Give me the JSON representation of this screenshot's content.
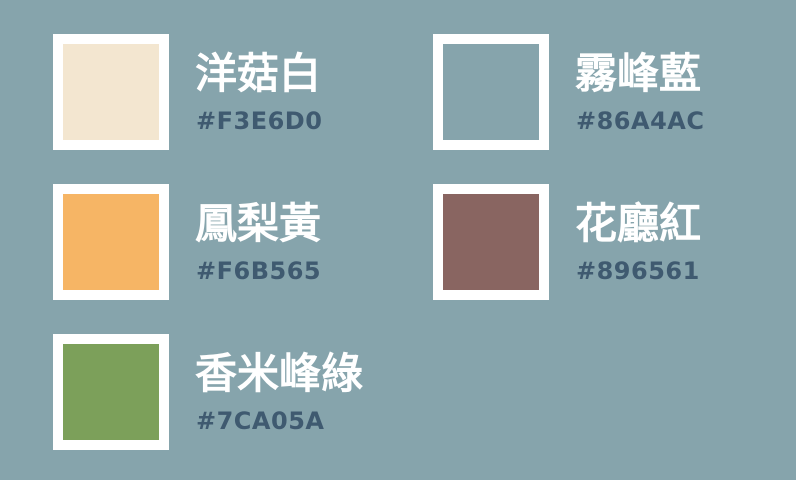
{
  "colors": {
    "background": "#86A4AC",
    "frame": "#FFFFFF",
    "name_text": "#FFFFFF",
    "hex_text": "#3F5A70"
  },
  "swatches": [
    {
      "name": "洋菇白",
      "hex": "#F3E6D0",
      "color": "#F3E6D0"
    },
    {
      "name": "霧峰藍",
      "hex": "#86A4AC",
      "color": "#86A4AC"
    },
    {
      "name": "鳳梨黃",
      "hex": "#F6B565",
      "color": "#F6B565"
    },
    {
      "name": "花廳紅",
      "hex": "#896561",
      "color": "#896561"
    },
    {
      "name": "香米峰綠",
      "hex": "#7CA05A",
      "color": "#7CA05A"
    }
  ]
}
